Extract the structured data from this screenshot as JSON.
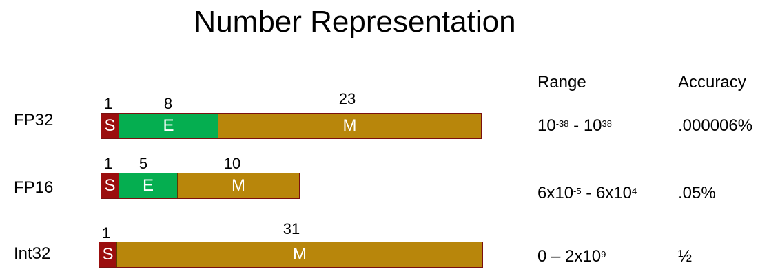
{
  "title": "Number Representation",
  "headers": {
    "range": "Range",
    "accuracy": "Accuracy"
  },
  "colors": {
    "sign": "#9b0e0e",
    "exponent": "#05ae50",
    "mantissa": "#b8860b"
  },
  "formats": [
    {
      "label": "FP32",
      "bits": {
        "sign": "1",
        "exponent": "8",
        "mantissa": "23"
      },
      "segments": {
        "sign": "S",
        "exponent": "E",
        "mantissa": "M"
      },
      "range": {
        "base1": "10",
        "exp1": "-38",
        "sep": " - ",
        "base2": "10",
        "exp2": "38"
      },
      "accuracy": ".000006%"
    },
    {
      "label": "FP16",
      "bits": {
        "sign": "1",
        "exponent": "5",
        "mantissa": "10"
      },
      "segments": {
        "sign": "S",
        "exponent": "E",
        "mantissa": "M"
      },
      "range": {
        "base1": "6x10",
        "exp1": "-5",
        "sep": " - ",
        "base2": "6x10",
        "exp2": "4"
      },
      "accuracy": ".05%"
    },
    {
      "label": "Int32",
      "bits": {
        "sign": "1",
        "mantissa": "31"
      },
      "segments": {
        "sign": "S",
        "mantissa": "M"
      },
      "range": {
        "base1": "0 – 2x10",
        "exp2": "9"
      },
      "accuracy": "½"
    }
  ]
}
